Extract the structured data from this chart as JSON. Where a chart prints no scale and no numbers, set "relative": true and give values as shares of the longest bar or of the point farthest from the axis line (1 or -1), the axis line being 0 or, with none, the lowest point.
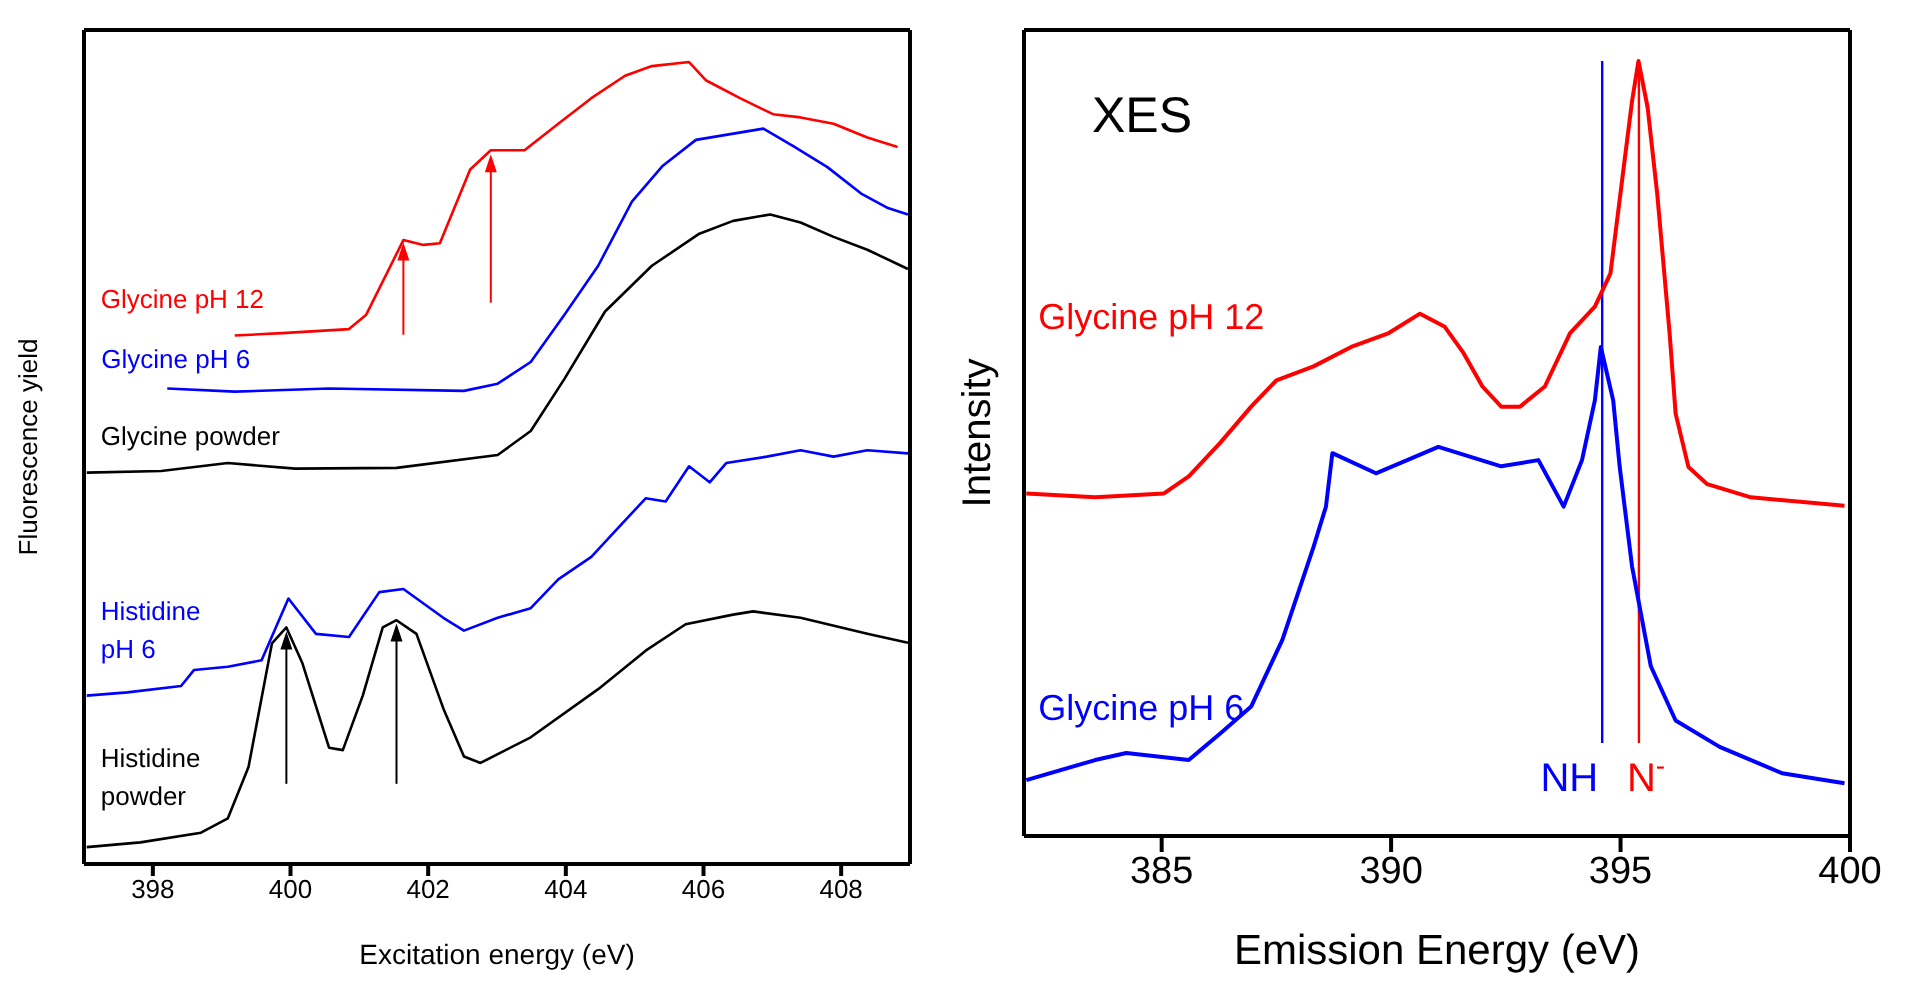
{
  "chart_data": [
    {
      "type": "line",
      "relative": true,
      "xlabel": "Excitation energy (eV)",
      "ylabel": "Fluorescence yield",
      "xlim": [
        397,
        409
      ],
      "xticks": [
        398,
        400,
        402,
        404,
        406,
        408
      ],
      "grid": false,
      "legend": false,
      "marker": "none",
      "line_style": "solid",
      "series": [
        {
          "name": "Glycine pH 12",
          "color": "#ff0000",
          "x": [
            399.19,
            399.88,
            400.85,
            401.1,
            401.64,
            401.93,
            402.17,
            402.61,
            402.91,
            403.4,
            403.89,
            404.37,
            404.86,
            405.25,
            405.79,
            406.04,
            406.53,
            407.01,
            407.41,
            407.89,
            408.38,
            408.82
          ],
          "values": [
            0.659,
            0.662,
            0.667,
            0.685,
            0.778,
            0.772,
            0.774,
            0.866,
            0.89,
            0.89,
            0.923,
            0.955,
            0.983,
            0.995,
            1.0,
            0.977,
            0.955,
            0.935,
            0.931,
            0.923,
            0.906,
            0.894
          ]
        },
        {
          "name": "Glycine pH 6",
          "color": "#0000ff",
          "x": [
            398.21,
            399.19,
            400.56,
            402.52,
            403.01,
            403.49,
            403.98,
            404.47,
            404.96,
            405.4,
            405.89,
            406.87,
            407.31,
            407.8,
            408.29,
            408.68,
            408.97
          ],
          "values": [
            0.593,
            0.589,
            0.593,
            0.59,
            0.599,
            0.626,
            0.685,
            0.746,
            0.826,
            0.87,
            0.903,
            0.917,
            0.895,
            0.869,
            0.836,
            0.818,
            0.81
          ]
        },
        {
          "name": "Glycine powder",
          "color": "#000000",
          "x": [
            397.04,
            398.12,
            399.09,
            400.07,
            401.54,
            403.01,
            403.49,
            403.98,
            404.57,
            405.25,
            405.94,
            406.43,
            406.97,
            407.41,
            407.89,
            408.38,
            408.97
          ],
          "values": [
            0.488,
            0.49,
            0.5,
            0.493,
            0.494,
            0.51,
            0.54,
            0.605,
            0.689,
            0.746,
            0.786,
            0.802,
            0.81,
            0.8,
            0.782,
            0.766,
            0.742
          ]
        },
        {
          "name": "Histidine pH 6",
          "color": "#0000ff",
          "x": [
            397.04,
            397.63,
            398.41,
            398.6,
            399.09,
            399.58,
            399.97,
            400.37,
            400.85,
            401.29,
            401.64,
            402.22,
            402.52,
            403.01,
            403.49,
            403.89,
            404.37,
            404.77,
            405.16,
            405.45,
            405.79,
            406.09,
            406.33,
            406.92,
            407.41,
            407.89,
            408.38,
            408.97
          ],
          "values": [
            0.21,
            0.214,
            0.222,
            0.242,
            0.246,
            0.254,
            0.331,
            0.287,
            0.283,
            0.339,
            0.343,
            0.307,
            0.291,
            0.307,
            0.319,
            0.355,
            0.383,
            0.42,
            0.456,
            0.452,
            0.496,
            0.476,
            0.5,
            0.508,
            0.516,
            0.508,
            0.516,
            0.512
          ]
        },
        {
          "name": "Histidine powder",
          "color": "#000000",
          "x": [
            397.04,
            397.82,
            398.7,
            399.09,
            399.39,
            399.73,
            399.94,
            400.17,
            400.56,
            400.76,
            401.05,
            401.34,
            401.54,
            401.83,
            402.22,
            402.52,
            402.76,
            403.49,
            404.47,
            405.16,
            405.74,
            406.43,
            406.72,
            407.41,
            408.38,
            408.97
          ],
          "values": [
            0.021,
            0.027,
            0.039,
            0.057,
            0.121,
            0.275,
            0.295,
            0.251,
            0.145,
            0.142,
            0.21,
            0.295,
            0.304,
            0.287,
            0.194,
            0.134,
            0.126,
            0.158,
            0.218,
            0.266,
            0.299,
            0.311,
            0.315,
            0.307,
            0.287,
            0.276
          ]
        }
      ]
    },
    {
      "type": "line",
      "relative": true,
      "xlabel": "Emission Energy (eV)",
      "ylabel": "Intensity",
      "annotations": [
        "XES"
      ],
      "xlim": [
        382,
        400
      ],
      "xticks": [
        385,
        390,
        395,
        400
      ],
      "grid": false,
      "legend": false,
      "marker": "none",
      "line_style": "solid",
      "ref_lines": [
        {
          "axis": "x",
          "value": 394.6,
          "label": "NH",
          "color": "#0000ff"
        },
        {
          "axis": "x",
          "value": 395.4,
          "label": "N$^{-}$",
          "color": "#ff0000"
        }
      ],
      "series": [
        {
          "name": "Glycine pH 12",
          "color": "#ff0000",
          "x": [
            382.05,
            383.55,
            385.05,
            385.59,
            386.27,
            386.95,
            387.5,
            388.31,
            389.13,
            389.95,
            390.63,
            391.17,
            391.58,
            391.99,
            392.4,
            392.81,
            393.35,
            393.9,
            394.44,
            394.78,
            395.05,
            395.25,
            395.39,
            395.59,
            395.8,
            396.07,
            396.2,
            396.48,
            396.89,
            397.84,
            399.88
          ],
          "values": [
            0.442,
            0.437,
            0.442,
            0.464,
            0.507,
            0.554,
            0.588,
            0.606,
            0.631,
            0.649,
            0.674,
            0.657,
            0.623,
            0.58,
            0.554,
            0.554,
            0.58,
            0.649,
            0.683,
            0.726,
            0.854,
            0.948,
            1.0,
            0.94,
            0.828,
            0.648,
            0.545,
            0.476,
            0.454,
            0.437,
            0.426
          ]
        },
        {
          "name": "Glycine pH 6",
          "color": "#0000ff",
          "x": [
            382.05,
            383.55,
            384.23,
            385.59,
            386.27,
            386.95,
            387.63,
            388.31,
            388.58,
            388.72,
            389.67,
            391.03,
            392.4,
            393.21,
            393.76,
            394.16,
            394.44,
            394.57,
            394.84,
            394.98,
            395.25,
            395.66,
            396.2,
            397.16,
            398.52,
            399.88
          ],
          "values": [
            0.072,
            0.098,
            0.107,
            0.098,
            0.132,
            0.167,
            0.253,
            0.373,
            0.425,
            0.494,
            0.468,
            0.502,
            0.477,
            0.485,
            0.425,
            0.485,
            0.562,
            0.631,
            0.562,
            0.477,
            0.348,
            0.219,
            0.149,
            0.115,
            0.081,
            0.068
          ]
        }
      ]
    }
  ]
}
